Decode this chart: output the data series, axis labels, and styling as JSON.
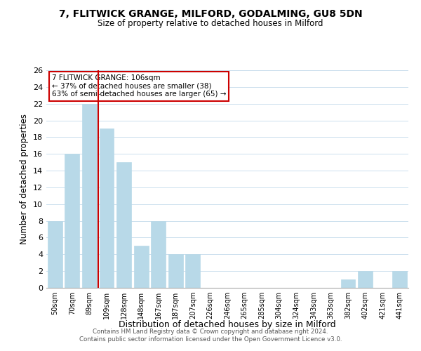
{
  "title1": "7, FLITWICK GRANGE, MILFORD, GODALMING, GU8 5DN",
  "title2": "Size of property relative to detached houses in Milford",
  "xlabel": "Distribution of detached houses by size in Milford",
  "ylabel": "Number of detached properties",
  "bar_labels": [
    "50sqm",
    "70sqm",
    "89sqm",
    "109sqm",
    "128sqm",
    "148sqm",
    "167sqm",
    "187sqm",
    "207sqm",
    "226sqm",
    "246sqm",
    "265sqm",
    "285sqm",
    "304sqm",
    "324sqm",
    "343sqm",
    "363sqm",
    "382sqm",
    "402sqm",
    "421sqm",
    "441sqm"
  ],
  "bar_values": [
    8,
    16,
    22,
    19,
    15,
    5,
    8,
    4,
    4,
    0,
    0,
    0,
    0,
    0,
    0,
    0,
    0,
    1,
    2,
    0,
    2
  ],
  "bar_color": "#b8d9e8",
  "vline_index": 2.5,
  "vline_color": "#cc0000",
  "ylim": [
    0,
    26
  ],
  "yticks": [
    0,
    2,
    4,
    6,
    8,
    10,
    12,
    14,
    16,
    18,
    20,
    22,
    24,
    26
  ],
  "annotation_title": "7 FLITWICK GRANGE: 106sqm",
  "annotation_line1": "← 37% of detached houses are smaller (38)",
  "annotation_line2": "63% of semi-detached houses are larger (65) →",
  "footer1": "Contains HM Land Registry data © Crown copyright and database right 2024.",
  "footer2": "Contains public sector information licensed under the Open Government Licence v3.0.",
  "background_color": "#ffffff",
  "grid_color": "#cce0ee"
}
